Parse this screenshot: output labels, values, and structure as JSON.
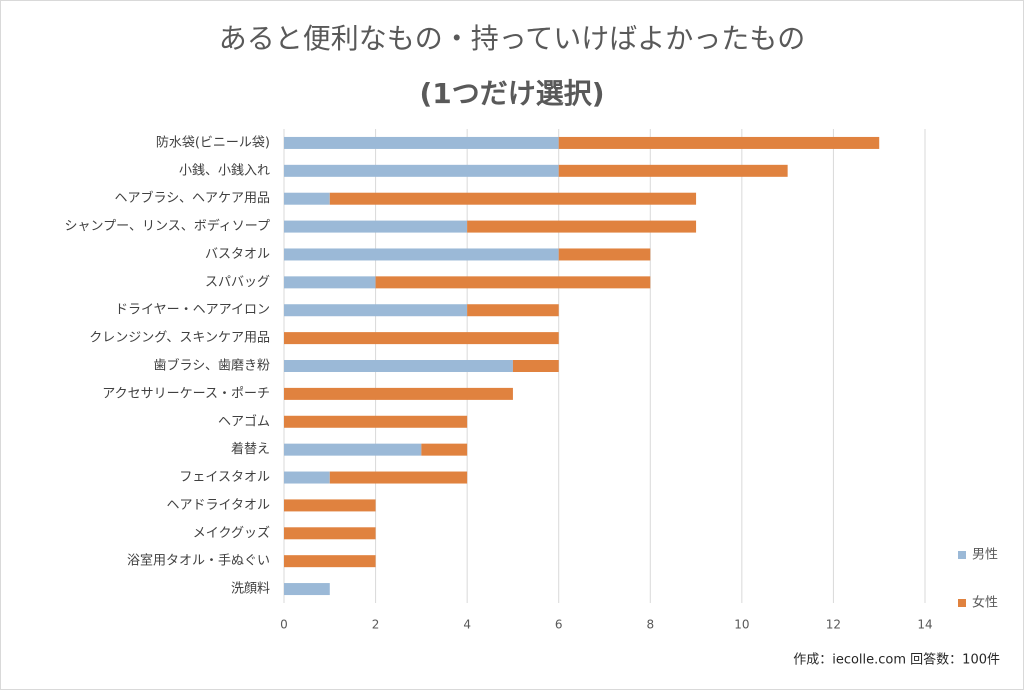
{
  "chart_data": {
    "type": "stacked-bar-horizontal",
    "title": "あると便利なもの・持っていけばよかったもの",
    "subtitle": "(1つだけ選択)",
    "annotation": "作成：iecolle.com 回答数：100件",
    "categories": [
      "防水袋(ビニール袋)",
      "小銭、小銭入れ",
      "ヘアブラシ、ヘアケア用品",
      "シャンプー、リンス、ボディソープ",
      "バスタオル",
      "スパバッグ",
      "ドライヤー・ヘアアイロン",
      "クレンジング、スキンケア用品",
      "歯ブラシ、歯磨き粉",
      "アクセサリーケース・ポーチ",
      "ヘアゴム",
      "着替え",
      "フェイスタオル",
      "ヘアドライタオル",
      "メイクグッズ",
      "浴室用タオル・手ぬぐい",
      "洗顔料"
    ],
    "series": [
      {
        "name": "男性",
        "color": "#9bb9d7",
        "values": [
          6,
          6,
          1,
          4,
          6,
          2,
          4,
          0,
          5,
          0,
          0,
          3,
          1,
          0,
          0,
          0,
          1
        ]
      },
      {
        "name": "女性",
        "color": "#e0823f",
        "values": [
          7,
          5,
          8,
          5,
          2,
          6,
          2,
          6,
          1,
          5,
          4,
          1,
          3,
          2,
          2,
          2,
          0
        ]
      }
    ],
    "xlim": [
      0,
      14
    ],
    "xticks": [
      0,
      2,
      4,
      6,
      8,
      10,
      12,
      14
    ],
    "grid": true,
    "legend": "right"
  }
}
